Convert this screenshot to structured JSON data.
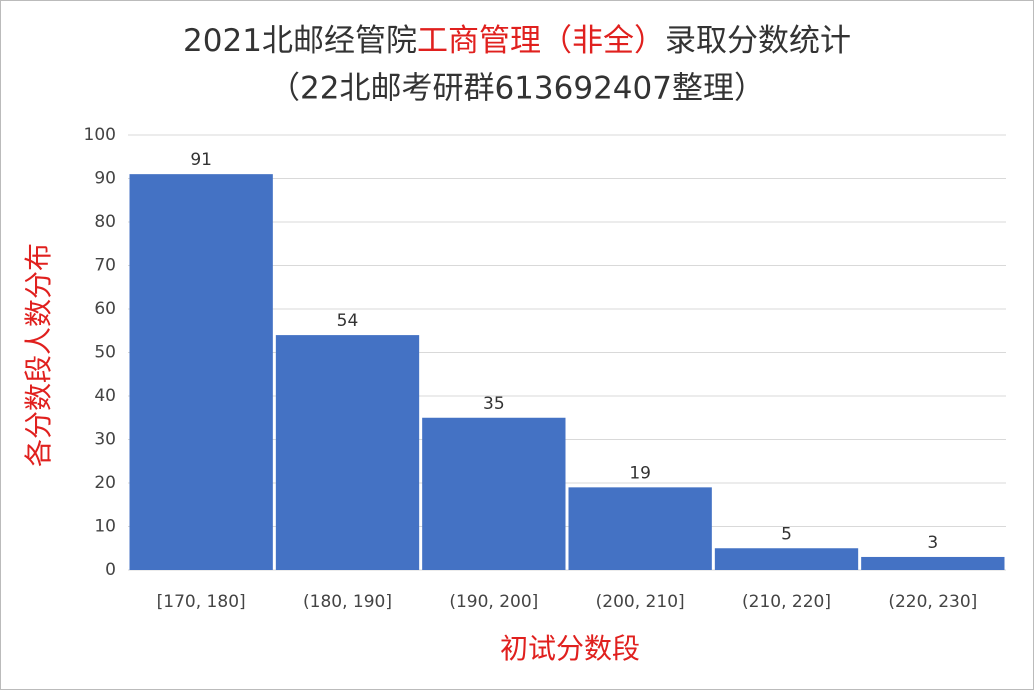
{
  "chart_data": {
    "type": "bar",
    "title": [
      "2021北邮经管院",
      "工商管理（非全）",
      "录取分数统计"
    ],
    "title_colors": [
      "#333333",
      "#e0201e",
      "#333333"
    ],
    "subtitle": "（22北邮考研群613692407整理）",
    "x_label": "初试分数段",
    "y_label": "各分数段人数分布",
    "axis_label_color": "#e0201e",
    "categories": [
      "[170, 180]",
      "(180, 190]",
      "(190, 200]",
      "(200, 210]",
      "(210, 220]",
      "(220, 230]"
    ],
    "values": [
      91,
      54,
      35,
      19,
      5,
      3
    ],
    "color": "#4472c4",
    "ylim": [
      0,
      100
    ],
    "yticks": [
      0,
      10,
      20,
      30,
      40,
      50,
      60,
      70,
      80,
      90,
      100
    ],
    "grid": true
  }
}
